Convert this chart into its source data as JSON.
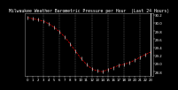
{
  "title": "Milwaukee Weather Barometric Pressure per Hour  (Last 24 Hours)",
  "x_values": [
    0,
    1,
    2,
    3,
    4,
    5,
    6,
    7,
    8,
    9,
    10,
    11,
    12,
    13,
    14,
    15,
    16,
    17,
    18,
    19,
    20,
    21,
    22,
    23
  ],
  "y_values": [
    30.14,
    30.1,
    30.08,
    30.04,
    29.98,
    29.89,
    29.78,
    29.65,
    29.48,
    29.3,
    29.12,
    28.98,
    28.87,
    28.82,
    28.8,
    28.85,
    28.9,
    28.95,
    28.98,
    29.02,
    29.08,
    29.15,
    29.22,
    29.28
  ],
  "ylim": [
    28.7,
    30.25
  ],
  "ytick_values": [
    28.8,
    29.0,
    29.2,
    29.4,
    29.6,
    29.8,
    30.0,
    30.2
  ],
  "ytick_labels": [
    "28.8",
    "29.0",
    "29.2",
    "29.4",
    "29.6",
    "29.8",
    "30.0",
    "30.2"
  ],
  "line_color": "#dd0000",
  "marker_color": "#000000",
  "bg_color": "#000000",
  "plot_bg_color": "#000000",
  "grid_color": "#666666",
  "title_color": "#ffffff",
  "tick_color": "#ffffff",
  "title_fontsize": 3.5,
  "tick_fontsize": 2.8,
  "vline_positions": [
    3,
    6,
    9,
    12,
    15,
    18,
    21
  ],
  "xlim": [
    -0.5,
    23.5
  ]
}
